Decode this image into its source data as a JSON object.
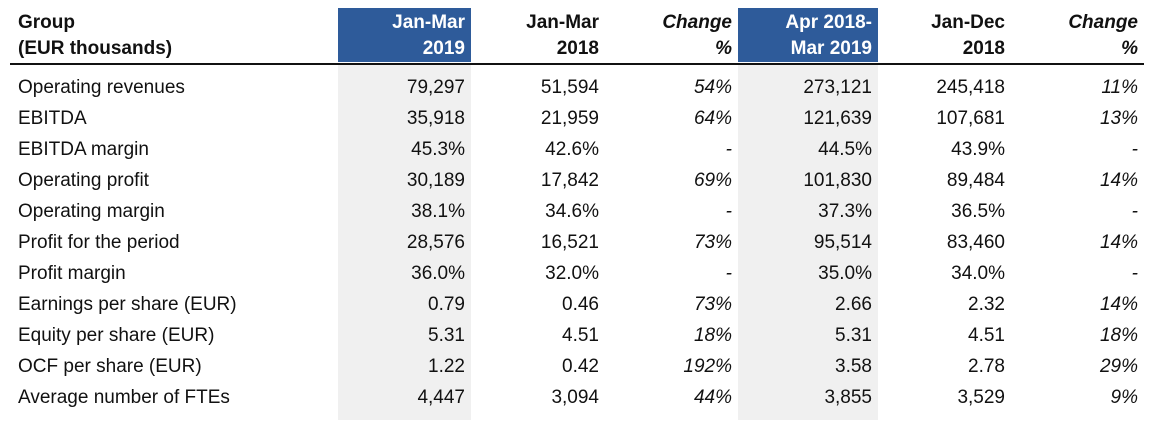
{
  "header": {
    "group_line1": "Group",
    "group_line2": "(EUR thousands)",
    "col1_line1": "Jan-Mar",
    "col1_line2": "2019",
    "col2_line1": "Jan-Mar",
    "col2_line2": "2018",
    "col3_line1": "Change",
    "col3_line2": "%",
    "col4_line1": "Apr 2018-",
    "col4_line2": "Mar 2019",
    "col5_line1": "Jan-Dec",
    "col5_line2": "2018",
    "col6_line1": "Change",
    "col6_line2": "%"
  },
  "rows": [
    {
      "label": "Operating revenues",
      "q1_2019": "79,297",
      "q1_2018": "51,594",
      "chg_q": "54%",
      "ltm": "273,121",
      "fy_2018": "245,418",
      "chg_y": "11%"
    },
    {
      "label": "EBITDA",
      "q1_2019": "35,918",
      "q1_2018": "21,959",
      "chg_q": "64%",
      "ltm": "121,639",
      "fy_2018": "107,681",
      "chg_y": "13%"
    },
    {
      "label": "EBITDA margin",
      "q1_2019": "45.3%",
      "q1_2018": "42.6%",
      "chg_q": "-",
      "ltm": "44.5%",
      "fy_2018": "43.9%",
      "chg_y": "-"
    },
    {
      "label": "Operating profit",
      "q1_2019": "30,189",
      "q1_2018": "17,842",
      "chg_q": "69%",
      "ltm": "101,830",
      "fy_2018": "89,484",
      "chg_y": "14%"
    },
    {
      "label": "Operating margin",
      "q1_2019": "38.1%",
      "q1_2018": "34.6%",
      "chg_q": "-",
      "ltm": "37.3%",
      "fy_2018": "36.5%",
      "chg_y": "-"
    },
    {
      "label": "Profit for the period",
      "q1_2019": "28,576",
      "q1_2018": "16,521",
      "chg_q": "73%",
      "ltm": "95,514",
      "fy_2018": "83,460",
      "chg_y": "14%"
    },
    {
      "label": "Profit margin",
      "q1_2019": "36.0%",
      "q1_2018": "32.0%",
      "chg_q": "-",
      "ltm": "35.0%",
      "fy_2018": "34.0%",
      "chg_y": "-"
    },
    {
      "label": "Earnings per share (EUR)",
      "q1_2019": "0.79",
      "q1_2018": "0.46",
      "chg_q": "73%",
      "ltm": "2.66",
      "fy_2018": "2.32",
      "chg_y": "14%"
    },
    {
      "label": "Equity per share (EUR)",
      "q1_2019": "5.31",
      "q1_2018": "4.51",
      "chg_q": "18%",
      "ltm": "5.31",
      "fy_2018": "4.51",
      "chg_y": "18%"
    },
    {
      "label": "OCF per share (EUR)",
      "q1_2019": "1.22",
      "q1_2018": "0.42",
      "chg_q": "192%",
      "ltm": "3.58",
      "fy_2018": "2.78",
      "chg_y": "29%"
    },
    {
      "label": "Average number of FTEs",
      "q1_2019": "4,447",
      "q1_2018": "3,094",
      "chg_q": "44%",
      "ltm": "3,855",
      "fy_2018": "3,529",
      "chg_y": "9%"
    }
  ],
  "colors": {
    "header_highlight": "#2e5b9a",
    "column_shade": "#f0f0f0"
  }
}
